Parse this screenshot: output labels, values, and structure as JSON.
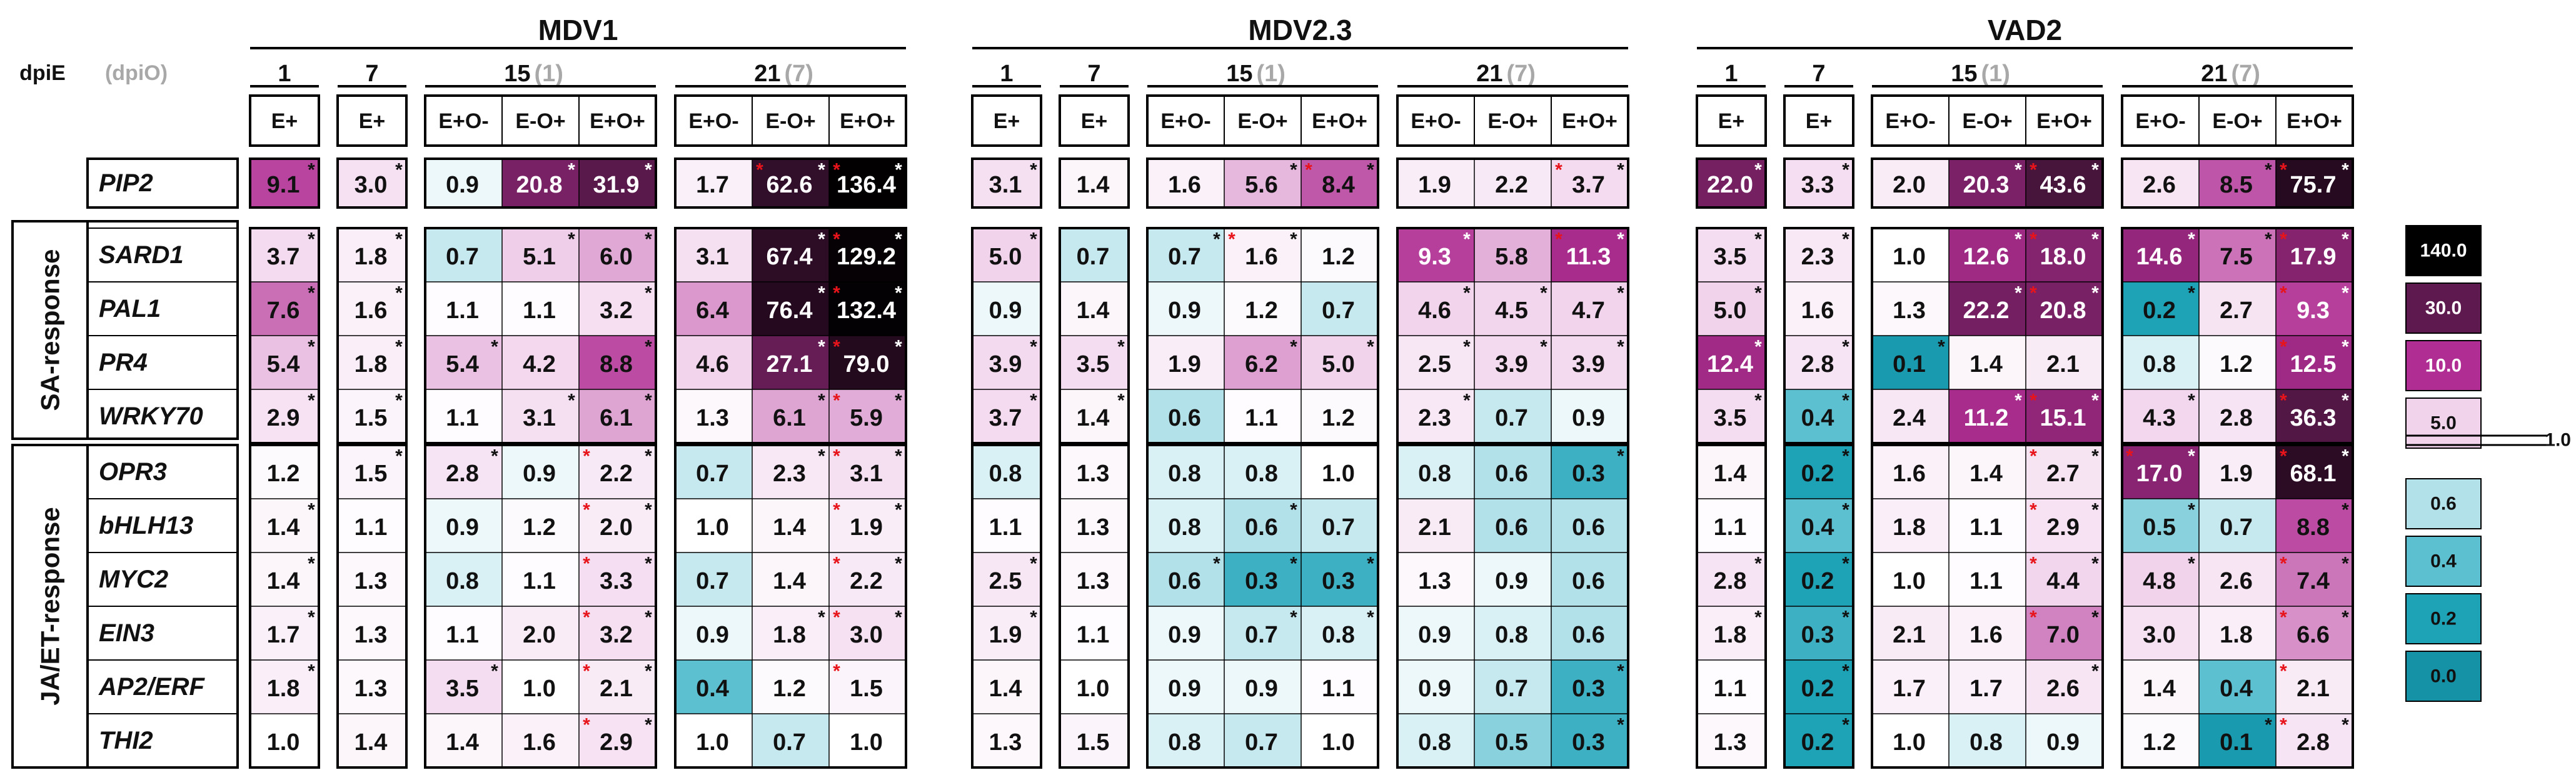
{
  "header": {
    "dpi_label": "dpiE",
    "dpi_sub": "(dpiO)",
    "groups": [
      "MDV1",
      "MDV2.3",
      "VAD2"
    ],
    "timepoints": [
      {
        "main": "1",
        "sub": ""
      },
      {
        "main": "7",
        "sub": ""
      },
      {
        "main": "15",
        "sub": "(1)"
      },
      {
        "main": "21",
        "sub": "(7)"
      }
    ],
    "conditions": [
      "E+",
      "E+",
      "E+O-",
      "E-O+",
      "E+O+",
      "E+O-",
      "E-O+",
      "E+O+"
    ]
  },
  "chart_data": {
    "type": "heatmap",
    "columns": [
      "MDV1 1 E+",
      "MDV1 7 E+",
      "MDV1 15 E+O-",
      "MDV1 15 E-O+",
      "MDV1 15 E+O+",
      "MDV1 21 E+O-",
      "MDV1 21 E-O+",
      "MDV1 21 E+O+",
      "MDV2.3 1 E+",
      "MDV2.3 7 E+",
      "MDV2.3 15 E+O-",
      "MDV2.3 15 E-O+",
      "MDV2.3 15 E+O+",
      "MDV2.3 21 E+O-",
      "MDV2.3 21 E-O+",
      "MDV2.3 21 E+O+",
      "VAD2 1 E+",
      "VAD2 7 E+",
      "VAD2 15 E+O-",
      "VAD2 15 E-O+",
      "VAD2 15 E+O+",
      "VAD2 21 E+O-",
      "VAD2 21 E-O+",
      "VAD2 21 E+O+"
    ],
    "row_groups": [
      {
        "label": "",
        "rows": [
          0
        ]
      },
      {
        "label": "SA-response",
        "rows": [
          1,
          2,
          3,
          4
        ]
      },
      {
        "label": "JA/ET-response",
        "rows": [
          5,
          6,
          7,
          8,
          9,
          10
        ]
      }
    ],
    "genes": [
      "PIP2",
      "SARD1",
      "PAL1",
      "PR4",
      "WRKY70",
      "OPR3",
      "bHLH13",
      "MYC2",
      "EIN3",
      "AP2/ERF",
      "THI2"
    ],
    "values": [
      [
        "9.1",
        "3.0",
        "0.9",
        "20.8",
        "31.9",
        "1.7",
        "62.6",
        "136.4",
        "3.1",
        "1.4",
        "1.6",
        "5.6",
        "8.4",
        "1.9",
        "2.2",
        "3.7",
        "22.0",
        "3.3",
        "2.0",
        "20.3",
        "43.6",
        "2.6",
        "8.5",
        "75.7"
      ],
      [
        "3.7",
        "1.8",
        "0.7",
        "5.1",
        "6.0",
        "3.1",
        "67.4",
        "129.2",
        "5.0",
        "0.7",
        "0.7",
        "1.6",
        "1.2",
        "9.3",
        "5.8",
        "11.3",
        "3.5",
        "2.3",
        "1.0",
        "12.6",
        "18.0",
        "14.6",
        "7.5",
        "17.9"
      ],
      [
        "7.6",
        "1.6",
        "1.1",
        "1.1",
        "3.2",
        "6.4",
        "76.4",
        "132.4",
        "0.9",
        "1.4",
        "0.9",
        "1.2",
        "0.7",
        "4.6",
        "4.5",
        "4.7",
        "5.0",
        "1.6",
        "1.3",
        "22.2",
        "20.8",
        "0.2",
        "2.7",
        "9.3"
      ],
      [
        "5.4",
        "1.8",
        "5.4",
        "4.2",
        "8.8",
        "4.6",
        "27.1",
        "79.0",
        "3.9",
        "3.5",
        "1.9",
        "6.2",
        "5.0",
        "2.5",
        "3.9",
        "3.9",
        "12.4",
        "2.8",
        "0.1",
        "1.4",
        "2.1",
        "0.8",
        "1.2",
        "12.5"
      ],
      [
        "2.9",
        "1.5",
        "1.1",
        "3.1",
        "6.1",
        "1.3",
        "6.1",
        "5.9",
        "3.7",
        "1.4",
        "0.6",
        "1.1",
        "1.2",
        "2.3",
        "0.7",
        "0.9",
        "3.5",
        "0.4",
        "2.4",
        "11.2",
        "15.1",
        "4.3",
        "2.8",
        "36.3"
      ],
      [
        "1.2",
        "1.5",
        "2.8",
        "0.9",
        "2.2",
        "0.7",
        "2.3",
        "3.1",
        "0.8",
        "1.3",
        "0.8",
        "0.8",
        "1.0",
        "0.8",
        "0.6",
        "0.3",
        "1.4",
        "0.2",
        "1.6",
        "1.4",
        "2.7",
        "17.0",
        "1.9",
        "68.1"
      ],
      [
        "1.4",
        "1.1",
        "0.9",
        "1.2",
        "2.0",
        "1.0",
        "1.4",
        "1.9",
        "1.1",
        "1.3",
        "0.8",
        "0.6",
        "0.7",
        "2.1",
        "0.6",
        "0.6",
        "1.1",
        "0.4",
        "1.8",
        "1.1",
        "2.9",
        "0.5",
        "0.7",
        "8.8"
      ],
      [
        "1.4",
        "1.3",
        "0.8",
        "1.1",
        "3.3",
        "0.7",
        "1.4",
        "2.2",
        "2.5",
        "1.3",
        "0.6",
        "0.3",
        "0.3",
        "1.3",
        "0.9",
        "0.6",
        "2.8",
        "0.2",
        "1.0",
        "1.1",
        "4.4",
        "4.8",
        "2.6",
        "7.4"
      ],
      [
        "1.7",
        "1.3",
        "1.1",
        "2.0",
        "3.2",
        "0.9",
        "1.8",
        "3.0",
        "1.9",
        "1.1",
        "0.9",
        "0.7",
        "0.8",
        "0.9",
        "0.8",
        "0.6",
        "1.8",
        "0.3",
        "2.1",
        "1.6",
        "7.0",
        "3.0",
        "1.8",
        "6.6"
      ],
      [
        "1.8",
        "1.3",
        "3.5",
        "1.0",
        "2.1",
        "0.4",
        "1.2",
        "1.5",
        "1.4",
        "1.0",
        "0.9",
        "0.9",
        "1.1",
        "0.9",
        "0.7",
        "0.3",
        "1.1",
        "0.2",
        "1.7",
        "1.7",
        "2.6",
        "1.4",
        "0.4",
        "2.1"
      ],
      [
        "1.0",
        "1.4",
        "1.4",
        "1.6",
        "2.9",
        "1.0",
        "0.7",
        "1.0",
        "1.3",
        "1.5",
        "0.8",
        "0.7",
        "1.0",
        "0.8",
        "0.5",
        "0.3",
        "1.3",
        "0.2",
        "1.0",
        "0.8",
        "0.9",
        "1.2",
        "0.1",
        "2.8"
      ]
    ],
    "black_asterisk": [
      [
        1,
        1,
        0,
        1,
        1,
        0,
        1,
        1,
        1,
        0,
        0,
        1,
        1,
        0,
        0,
        1,
        1,
        1,
        0,
        1,
        1,
        0,
        1,
        1
      ],
      [
        1,
        1,
        0,
        1,
        1,
        0,
        1,
        1,
        1,
        0,
        1,
        1,
        0,
        1,
        0,
        1,
        1,
        1,
        0,
        1,
        1,
        1,
        1,
        1
      ],
      [
        1,
        1,
        0,
        0,
        1,
        0,
        1,
        1,
        0,
        0,
        0,
        0,
        0,
        1,
        1,
        1,
        1,
        0,
        0,
        1,
        1,
        1,
        0,
        1
      ],
      [
        1,
        1,
        1,
        0,
        1,
        0,
        1,
        1,
        1,
        1,
        0,
        1,
        1,
        1,
        1,
        1,
        1,
        1,
        1,
        0,
        0,
        0,
        0,
        1
      ],
      [
        1,
        1,
        0,
        1,
        1,
        0,
        1,
        1,
        1,
        1,
        0,
        0,
        0,
        1,
        0,
        0,
        1,
        1,
        0,
        1,
        1,
        1,
        0,
        1
      ],
      [
        0,
        1,
        1,
        0,
        1,
        0,
        1,
        1,
        0,
        0,
        0,
        0,
        0,
        0,
        0,
        1,
        0,
        1,
        0,
        0,
        1,
        1,
        0,
        1
      ],
      [
        1,
        0,
        0,
        0,
        1,
        0,
        0,
        1,
        0,
        0,
        0,
        1,
        0,
        0,
        0,
        0,
        0,
        1,
        0,
        0,
        1,
        1,
        0,
        1
      ],
      [
        1,
        0,
        0,
        0,
        1,
        0,
        0,
        1,
        1,
        0,
        1,
        1,
        1,
        0,
        0,
        0,
        1,
        1,
        0,
        0,
        1,
        1,
        0,
        1
      ],
      [
        1,
        0,
        0,
        0,
        1,
        0,
        1,
        1,
        1,
        0,
        0,
        1,
        1,
        0,
        0,
        0,
        1,
        1,
        0,
        0,
        1,
        0,
        0,
        1
      ],
      [
        1,
        0,
        1,
        0,
        1,
        0,
        0,
        0,
        0,
        0,
        0,
        0,
        0,
        0,
        0,
        1,
        0,
        1,
        0,
        0,
        1,
        0,
        0,
        0
      ],
      [
        0,
        0,
        0,
        0,
        1,
        0,
        0,
        0,
        0,
        0,
        0,
        0,
        0,
        0,
        0,
        1,
        0,
        1,
        0,
        0,
        0,
        0,
        1,
        1
      ]
    ],
    "red_asterisk": [
      [
        0,
        0,
        0,
        0,
        0,
        0,
        1,
        1,
        0,
        0,
        0,
        0,
        1,
        0,
        0,
        1,
        0,
        0,
        0,
        0,
        1,
        0,
        0,
        1
      ],
      [
        0,
        0,
        0,
        0,
        0,
        0,
        0,
        1,
        0,
        0,
        0,
        1,
        0,
        0,
        0,
        1,
        0,
        0,
        0,
        0,
        1,
        0,
        0,
        1
      ],
      [
        0,
        0,
        0,
        0,
        0,
        0,
        0,
        1,
        0,
        0,
        0,
        0,
        0,
        0,
        0,
        0,
        0,
        0,
        0,
        0,
        1,
        0,
        0,
        1
      ],
      [
        0,
        0,
        0,
        0,
        0,
        0,
        0,
        1,
        0,
        0,
        0,
        0,
        0,
        0,
        0,
        0,
        0,
        0,
        0,
        0,
        0,
        0,
        0,
        1
      ],
      [
        0,
        0,
        0,
        0,
        0,
        0,
        0,
        1,
        0,
        0,
        0,
        0,
        0,
        0,
        0,
        0,
        0,
        0,
        0,
        0,
        1,
        0,
        0,
        1
      ],
      [
        0,
        0,
        0,
        0,
        1,
        0,
        0,
        1,
        0,
        0,
        0,
        0,
        0,
        0,
        0,
        0,
        0,
        0,
        0,
        0,
        1,
        1,
        0,
        1
      ],
      [
        0,
        0,
        0,
        0,
        1,
        0,
        0,
        1,
        0,
        0,
        0,
        0,
        0,
        0,
        0,
        0,
        0,
        0,
        0,
        0,
        1,
        0,
        0,
        0
      ],
      [
        0,
        0,
        0,
        0,
        1,
        0,
        0,
        1,
        0,
        0,
        0,
        0,
        0,
        0,
        0,
        0,
        0,
        0,
        0,
        0,
        1,
        0,
        0,
        1
      ],
      [
        0,
        0,
        0,
        0,
        1,
        0,
        0,
        1,
        0,
        0,
        0,
        0,
        0,
        0,
        0,
        0,
        0,
        0,
        0,
        0,
        1,
        0,
        0,
        1
      ],
      [
        0,
        0,
        0,
        0,
        1,
        0,
        0,
        1,
        0,
        0,
        0,
        0,
        0,
        0,
        0,
        0,
        0,
        0,
        0,
        0,
        0,
        0,
        0,
        1
      ],
      [
        0,
        0,
        0,
        0,
        1,
        0,
        0,
        0,
        0,
        0,
        0,
        0,
        0,
        0,
        0,
        0,
        0,
        0,
        0,
        0,
        0,
        0,
        0,
        1
      ]
    ],
    "color_scale": [
      {
        "label": "140.0",
        "value": 140.0,
        "color": "#000000"
      },
      {
        "label": "30.0",
        "value": 30.0,
        "color": "#5e1a4e"
      },
      {
        "label": "10.0",
        "value": 10.0,
        "color": "#b02e93"
      },
      {
        "label": "5.0",
        "value": 5.0,
        "color": "#f1d3ec"
      },
      {
        "label": "1.0",
        "value": 1.0,
        "color": "#ffffff"
      },
      {
        "label": "0.6",
        "value": 0.6,
        "color": "#b3e1ea"
      },
      {
        "label": "0.4",
        "value": 0.4,
        "color": "#5dc0d0"
      },
      {
        "label": "0.2",
        "value": 0.2,
        "color": "#1ea2b6"
      },
      {
        "label": "0.0",
        "value": 0.0,
        "color": "#1592a6"
      }
    ]
  }
}
